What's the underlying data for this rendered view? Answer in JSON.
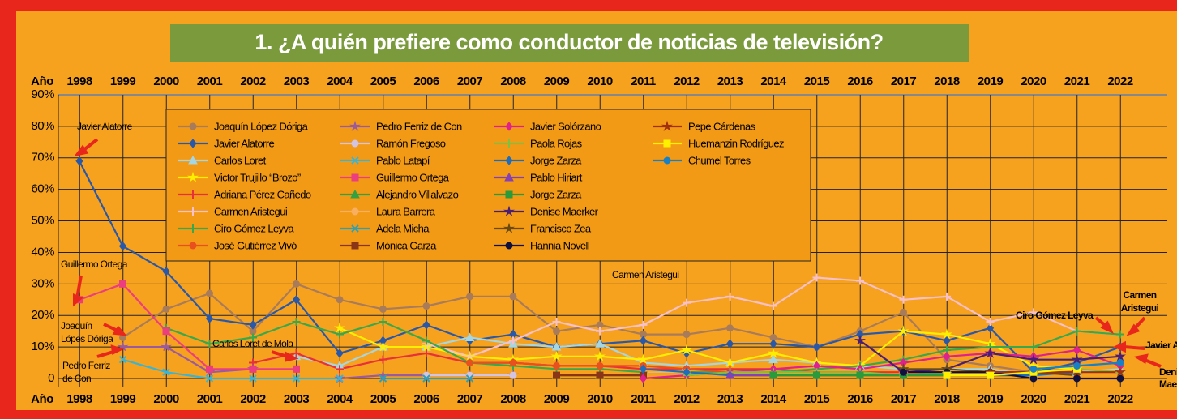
{
  "chart_data": {
    "type": "line",
    "title": "1. ¿A quién prefiere como conductor de noticias de televisión?",
    "x_label": "Año",
    "categories": [
      "1998",
      "1999",
      "2000",
      "2001",
      "2002",
      "2003",
      "2004",
      "2005",
      "2006",
      "2007",
      "2008",
      "2009",
      "2010",
      "2011",
      "2012",
      "2013",
      "2014",
      "2015",
      "2016",
      "2017",
      "2018",
      "2019",
      "2020",
      "2021",
      "2022"
    ],
    "ylim": [
      0,
      90
    ],
    "yticks": [
      0,
      {
        "value": 10,
        "label": "10%"
      },
      {
        "value": 20,
        "label": "20%"
      },
      {
        "value": 30,
        "label": "30%"
      },
      {
        "value": 40,
        "label": "40%"
      },
      {
        "value": 50,
        "label": "50%"
      },
      {
        "value": 60,
        "label": "60%"
      },
      {
        "value": 70,
        "label": "70%"
      },
      {
        "value": 80,
        "label": "80%"
      },
      {
        "value": 90,
        "label": "90%"
      }
    ],
    "grid": true,
    "series": [
      {
        "name": "Joaquín López Dóriga",
        "color": "#a87c5a",
        "marker": "circle",
        "values": [
          null,
          13,
          22,
          27,
          15,
          30,
          25,
          22,
          23,
          26,
          26,
          15,
          17,
          14,
          14,
          16,
          13,
          10,
          15,
          21,
          6,
          4,
          2,
          1,
          null
        ]
      },
      {
        "name": "Javier Alatorre",
        "color": "#2a58a8",
        "marker": "diamond",
        "values": [
          69,
          42,
          34,
          19,
          17,
          25,
          8,
          12,
          17,
          12,
          14,
          10,
          11,
          12,
          8,
          11,
          11,
          10,
          14,
          15,
          12,
          16,
          2,
          5,
          10
        ]
      },
      {
        "name": "Carlos Loret",
        "color": "#a6d6e2",
        "marker": "triangle",
        "values": [
          null,
          null,
          null,
          null,
          null,
          7,
          4,
          10,
          10,
          13,
          11,
          10,
          11,
          5,
          4,
          5,
          6,
          5,
          4,
          3,
          3,
          3,
          1,
          2,
          3
        ]
      },
      {
        "name": "Victor Trujillo “Brozo”",
        "color": "#ffee00",
        "marker": "star",
        "values": [
          null,
          null,
          null,
          null,
          null,
          null,
          16,
          10,
          10,
          7,
          6,
          7,
          7,
          6,
          9,
          5,
          8,
          5,
          4,
          15,
          14,
          11,
          4,
          3,
          null
        ]
      },
      {
        "name": "Adriana Pérez Cañedo",
        "color": "#e8303a",
        "marker": "plus",
        "values": [
          null,
          null,
          null,
          null,
          5,
          8,
          3,
          6,
          8,
          5,
          5,
          4,
          4,
          3,
          3,
          3,
          3,
          2,
          2,
          2,
          2,
          2,
          2,
          2,
          null
        ]
      },
      {
        "name": "Carmen Aristegui",
        "color": "#f6c0cc",
        "marker": "plus",
        "values": [
          null,
          null,
          null,
          null,
          null,
          null,
          null,
          null,
          11,
          7,
          12,
          18,
          15,
          17,
          24,
          26,
          23,
          32,
          31,
          25,
          26,
          18,
          21,
          15,
          14
        ]
      },
      {
        "name": "Ciro Gómez Leyva",
        "color": "#3aa84a",
        "marker": "plus",
        "values": [
          null,
          null,
          16,
          11,
          13,
          18,
          14,
          18,
          12,
          5,
          4,
          3,
          3,
          2,
          2,
          2,
          2,
          3,
          4,
          6,
          9,
          10,
          10,
          15,
          14
        ]
      },
      {
        "name": "José Gutiérrez Vivó",
        "color": "#e8501e",
        "marker": "circle",
        "values": [
          null,
          null,
          null,
          null,
          null,
          null,
          null,
          null,
          null,
          5,
          5,
          4,
          4,
          4,
          3,
          2,
          null,
          null,
          null,
          null,
          null,
          null,
          null,
          null,
          null
        ]
      },
      {
        "name": "Pedro Ferriz de Con",
        "color": "#9a5aa0",
        "marker": "star",
        "values": [
          null,
          10,
          10,
          2,
          3,
          null,
          0,
          1,
          1,
          1,
          1,
          null,
          null,
          null,
          null,
          null,
          null,
          null,
          null,
          null,
          null,
          null,
          null,
          null,
          null
        ]
      },
      {
        "name": "Ramón Fregoso",
        "color": "#d4c4e4",
        "marker": "circle",
        "values": [
          null,
          null,
          null,
          null,
          null,
          null,
          null,
          null,
          1,
          1,
          1,
          null,
          null,
          null,
          null,
          null,
          null,
          null,
          null,
          null,
          null,
          null,
          null,
          null,
          null
        ]
      },
      {
        "name": "Pablo Latapí",
        "color": "#3ab4d4",
        "marker": "x",
        "values": [
          null,
          6,
          2,
          0,
          0,
          0,
          0,
          null,
          null,
          null,
          null,
          null,
          null,
          null,
          null,
          null,
          null,
          null,
          null,
          null,
          null,
          null,
          null,
          null,
          null
        ]
      },
      {
        "name": "Guillermo Ortega",
        "color": "#ec3e7e",
        "marker": "square",
        "values": [
          25,
          30,
          15,
          3,
          3,
          3,
          null,
          null,
          null,
          null,
          null,
          null,
          null,
          null,
          null,
          null,
          null,
          null,
          null,
          null,
          null,
          null,
          null,
          null,
          null
        ]
      },
      {
        "name": "Alejandro Villalvazo",
        "color": "#34a040",
        "marker": "triangle",
        "values": [
          null,
          null,
          null,
          null,
          null,
          null,
          null,
          null,
          null,
          null,
          null,
          1,
          1,
          null,
          null,
          null,
          null,
          null,
          null,
          null,
          null,
          null,
          null,
          null,
          null
        ]
      },
      {
        "name": "Laura Barrera",
        "color": "#f8b060",
        "marker": "circle",
        "values": [
          null,
          null,
          null,
          null,
          null,
          null,
          null,
          null,
          null,
          null,
          null,
          null,
          null,
          2,
          2,
          null,
          null,
          null,
          null,
          null,
          null,
          null,
          null,
          null,
          null
        ]
      },
      {
        "name": "Adela Micha",
        "color": "#2ea0b4",
        "marker": "x",
        "values": [
          null,
          null,
          null,
          null,
          null,
          null,
          null,
          0,
          0,
          0,
          null,
          null,
          1,
          1,
          null,
          null,
          null,
          null,
          null,
          null,
          null,
          null,
          null,
          null,
          null
        ]
      },
      {
        "name": "Mónica Garza",
        "color": "#8a3418",
        "marker": "square",
        "values": [
          null,
          null,
          null,
          null,
          null,
          null,
          null,
          null,
          null,
          null,
          null,
          1,
          1,
          1,
          null,
          null,
          null,
          null,
          null,
          null,
          null,
          null,
          null,
          null,
          null
        ]
      },
      {
        "name": "Javier Solórzano",
        "color": "#e0208c",
        "marker": "diamond",
        "values": [
          null,
          null,
          null,
          null,
          null,
          null,
          null,
          null,
          null,
          null,
          null,
          null,
          null,
          0,
          1,
          2,
          3,
          4,
          3,
          5,
          7,
          8,
          7,
          9,
          4
        ]
      },
      {
        "name": "Paola Rojas",
        "color": "#80c040",
        "marker": "plus",
        "values": [
          null,
          null,
          null,
          null,
          null,
          null,
          null,
          null,
          null,
          null,
          null,
          null,
          null,
          null,
          1,
          2,
          2,
          2,
          2,
          1,
          2,
          2,
          2,
          3,
          2
        ]
      },
      {
        "name": "Jorge Zarza",
        "color": "#1e6cbc",
        "marker": "diamond",
        "values": [
          null,
          null,
          null,
          null,
          null,
          null,
          null,
          null,
          null,
          null,
          null,
          null,
          null,
          3,
          2,
          1,
          1,
          1,
          1,
          1,
          1,
          1,
          1,
          2,
          null
        ]
      },
      {
        "name": "Pablo Hiriart",
        "color": "#8440b4",
        "marker": "triangle",
        "values": [
          null,
          null,
          null,
          null,
          null,
          null,
          null,
          null,
          null,
          null,
          null,
          null,
          null,
          null,
          null,
          1,
          1,
          null,
          null,
          null,
          null,
          null,
          null,
          null,
          null
        ]
      },
      {
        "name": "Jorge Zarza",
        "color": "#2a9a3a",
        "marker": "square",
        "values": [
          null,
          null,
          null,
          null,
          null,
          null,
          null,
          null,
          null,
          null,
          null,
          null,
          null,
          null,
          null,
          null,
          1,
          1,
          1,
          1,
          1,
          1,
          null,
          null,
          null
        ]
      },
      {
        "name": "Denise Maerker",
        "color": "#4a1e74",
        "marker": "star",
        "values": [
          null,
          null,
          null,
          null,
          null,
          null,
          null,
          null,
          null,
          null,
          null,
          null,
          null,
          null,
          null,
          null,
          null,
          null,
          12,
          2,
          3,
          8,
          6,
          6,
          7
        ]
      },
      {
        "name": "Francisco Zea",
        "color": "#6a4a10",
        "marker": "star",
        "values": [
          null,
          null,
          null,
          null,
          null,
          null,
          null,
          null,
          null,
          null,
          null,
          null,
          null,
          null,
          null,
          null,
          null,
          null,
          null,
          3,
          3,
          2,
          2,
          1,
          null
        ]
      },
      {
        "name": "Hannia Novell",
        "color": "#10103e",
        "marker": "circle",
        "values": [
          null,
          null,
          null,
          null,
          null,
          null,
          null,
          null,
          null,
          null,
          null,
          null,
          null,
          null,
          null,
          null,
          null,
          null,
          null,
          2,
          2,
          2,
          0,
          0,
          0
        ]
      },
      {
        "name": "Pepe Cárdenas",
        "color": "#a0300e",
        "marker": "star",
        "values": [
          null,
          null,
          null,
          null,
          null,
          null,
          null,
          null,
          null,
          null,
          null,
          null,
          null,
          null,
          null,
          null,
          null,
          null,
          null,
          null,
          null,
          2,
          2,
          2,
          2
        ]
      },
      {
        "name": "Huemanzin Rodríguez",
        "color": "#fff000",
        "marker": "square",
        "values": [
          null,
          null,
          null,
          null,
          null,
          null,
          null,
          null,
          null,
          null,
          null,
          null,
          null,
          null,
          null,
          null,
          null,
          null,
          null,
          null,
          1,
          1,
          2,
          3,
          null
        ]
      },
      {
        "name": "Chumel Torres",
        "color": "#1a80c4",
        "marker": "circle",
        "values": [
          null,
          null,
          null,
          null,
          null,
          null,
          null,
          null,
          null,
          null,
          null,
          null,
          null,
          null,
          null,
          null,
          null,
          null,
          null,
          null,
          null,
          null,
          3,
          4,
          5
        ]
      }
    ],
    "annotations": [
      [
        "Javier Alatorre"
      ],
      [
        "Guillermo Ortega"
      ],
      [
        "Joaquín",
        "Lópes Dóriga"
      ],
      [
        "Pedro Ferriz",
        "de Con"
      ],
      [
        "Carlos Loret de Mola"
      ],
      [
        "Carmen Aristegui"
      ],
      [
        "Ciro Gómez Leyva"
      ],
      [
        "Carmen",
        "Aristegui"
      ],
      [
        "Javier Alatorre"
      ],
      [
        "Denise",
        "Maerker"
      ]
    ]
  }
}
